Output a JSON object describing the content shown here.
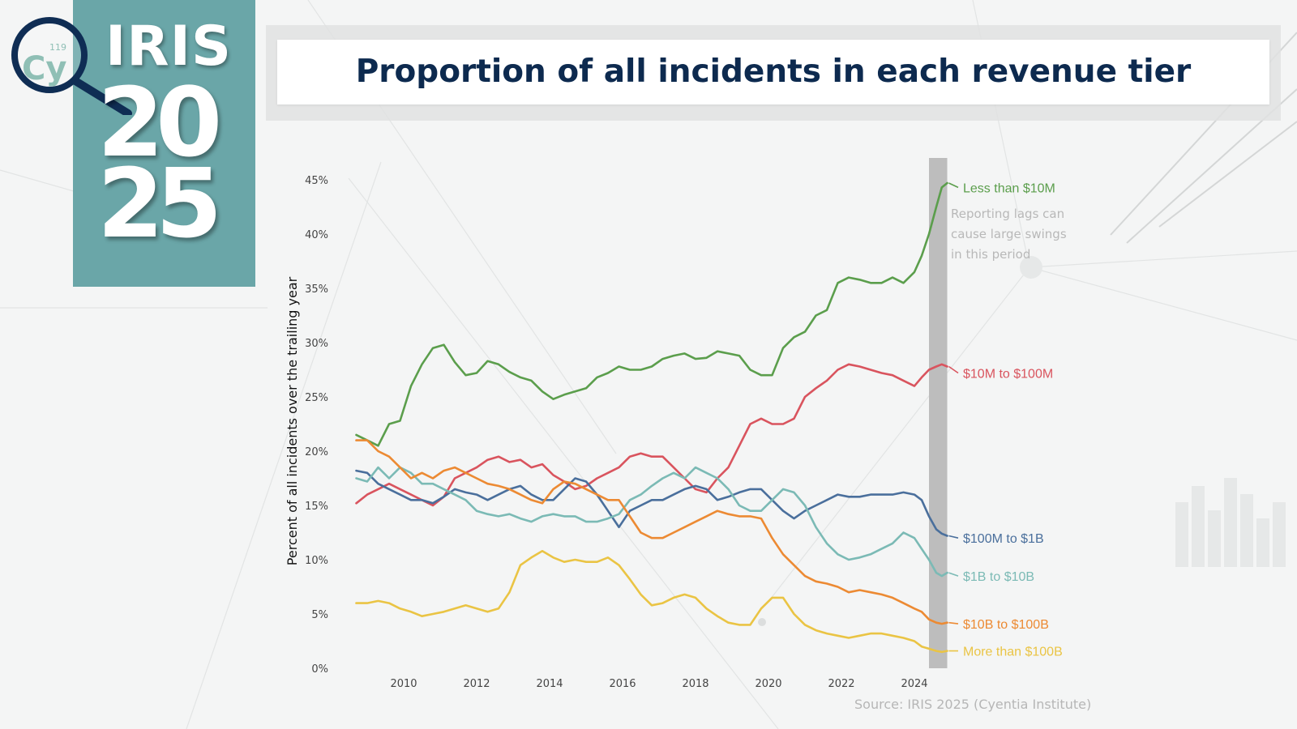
{
  "header": {
    "logo_word": "IRIS",
    "logo_year_top": "20",
    "logo_year_bottom": "25",
    "logo_badge_text": "Cy",
    "logo_badge_number": "119"
  },
  "footer": {
    "source": "Source: IRIS 2025 (Cyentia Institute)"
  },
  "colors": {
    "lt10m": "#5b9e4c",
    "10m_100m": "#d9545e",
    "100m_1b": "#4a6f9c",
    "1b_10b": "#7bbab5",
    "10b_100b": "#ec8a33",
    "gt100b": "#eac444",
    "logo_bg": "#6aa6a8",
    "title": "#0d2a4f"
  },
  "chart_data": {
    "type": "line",
    "title": "Proportion of all incidents in each revenue tier",
    "ylabel": "Percent of all incidents over the trailing year",
    "xlabel": "",
    "xlim": [
      2008.7,
      2024.9
    ],
    "ylim": [
      0,
      45
    ],
    "x_ticks": [
      2010,
      2012,
      2014,
      2016,
      2018,
      2020,
      2022,
      2024
    ],
    "y_ticks": [
      0,
      5,
      10,
      15,
      20,
      25,
      30,
      35,
      40,
      45
    ],
    "y_tick_labels": [
      "0%",
      "5%",
      "10%",
      "15%",
      "20%",
      "25%",
      "30%",
      "35%",
      "40%",
      "45%"
    ],
    "grid": false,
    "legend": "direct labels at right end of lines",
    "highlight_band": {
      "x": [
        2024.4,
        2024.9
      ]
    },
    "annotation": {
      "text": [
        "Reporting lags can",
        "cause large swings",
        "in this period"
      ],
      "x": 2025.0,
      "y": 41.5
    },
    "series": [
      {
        "name": "Less than $10M",
        "color_key": "lt10m",
        "label_y": 44.3,
        "x": [
          2008.7,
          2009.0,
          2009.3,
          2009.6,
          2009.9,
          2010.2,
          2010.5,
          2010.8,
          2011.1,
          2011.4,
          2011.7,
          2012.0,
          2012.3,
          2012.6,
          2012.9,
          2013.2,
          2013.5,
          2013.8,
          2014.1,
          2014.4,
          2014.7,
          2015.0,
          2015.3,
          2015.6,
          2015.9,
          2016.2,
          2016.5,
          2016.8,
          2017.1,
          2017.4,
          2017.7,
          2018.0,
          2018.3,
          2018.6,
          2018.9,
          2019.2,
          2019.5,
          2019.8,
          2020.1,
          2020.4,
          2020.7,
          2021.0,
          2021.3,
          2021.6,
          2021.9,
          2022.2,
          2022.5,
          2022.8,
          2023.1,
          2023.4,
          2023.7,
          2024.0,
          2024.2,
          2024.4,
          2024.6,
          2024.75,
          2024.9
        ],
        "y": [
          21.5,
          21.0,
          20.5,
          22.5,
          22.8,
          26.0,
          28.0,
          29.5,
          29.8,
          28.2,
          27.0,
          27.2,
          28.3,
          28.0,
          27.3,
          26.8,
          26.5,
          25.5,
          24.8,
          25.2,
          25.5,
          25.8,
          26.8,
          27.2,
          27.8,
          27.5,
          27.5,
          27.8,
          28.5,
          28.8,
          29.0,
          28.5,
          28.6,
          29.2,
          29.0,
          28.8,
          27.5,
          27.0,
          27.0,
          29.5,
          30.5,
          31.0,
          32.5,
          33.0,
          35.5,
          36.0,
          35.8,
          35.5,
          35.5,
          36.0,
          35.5,
          36.5,
          38.0,
          40.0,
          42.5,
          44.3,
          44.7
        ]
      },
      {
        "name": "$10M to $100M",
        "color_key": "10m_100m",
        "label_y": 27.2,
        "x": [
          2008.7,
          2009.0,
          2009.3,
          2009.6,
          2009.9,
          2010.2,
          2010.5,
          2010.8,
          2011.1,
          2011.4,
          2011.7,
          2012.0,
          2012.3,
          2012.6,
          2012.9,
          2013.2,
          2013.5,
          2013.8,
          2014.1,
          2014.4,
          2014.7,
          2015.0,
          2015.3,
          2015.6,
          2015.9,
          2016.2,
          2016.5,
          2016.8,
          2017.1,
          2017.4,
          2017.7,
          2018.0,
          2018.3,
          2018.6,
          2018.9,
          2019.2,
          2019.5,
          2019.8,
          2020.1,
          2020.4,
          2020.7,
          2021.0,
          2021.3,
          2021.6,
          2021.9,
          2022.2,
          2022.5,
          2022.8,
          2023.1,
          2023.4,
          2023.7,
          2024.0,
          2024.2,
          2024.4,
          2024.6,
          2024.75,
          2024.9
        ],
        "y": [
          15.2,
          16.0,
          16.5,
          17.0,
          16.5,
          16.0,
          15.5,
          15.0,
          15.8,
          17.5,
          18.0,
          18.5,
          19.2,
          19.5,
          19.0,
          19.2,
          18.5,
          18.8,
          17.8,
          17.2,
          16.5,
          16.8,
          17.5,
          18.0,
          18.5,
          19.5,
          19.8,
          19.5,
          19.5,
          18.5,
          17.5,
          16.5,
          16.2,
          17.5,
          18.5,
          20.5,
          22.5,
          23.0,
          22.5,
          22.5,
          23.0,
          25.0,
          25.8,
          26.5,
          27.5,
          28.0,
          27.8,
          27.5,
          27.2,
          27.0,
          26.5,
          26.0,
          26.8,
          27.5,
          27.8,
          28.0,
          27.8
        ]
      },
      {
        "name": "$100M to $1B",
        "color_key": "100m_1b",
        "label_y": 12.0,
        "x": [
          2008.7,
          2009.0,
          2009.3,
          2009.6,
          2009.9,
          2010.2,
          2010.5,
          2010.8,
          2011.1,
          2011.4,
          2011.7,
          2012.0,
          2012.3,
          2012.6,
          2012.9,
          2013.2,
          2013.5,
          2013.8,
          2014.1,
          2014.4,
          2014.7,
          2015.0,
          2015.3,
          2015.6,
          2015.9,
          2016.2,
          2016.5,
          2016.8,
          2017.1,
          2017.4,
          2017.7,
          2018.0,
          2018.3,
          2018.6,
          2018.9,
          2019.2,
          2019.5,
          2019.8,
          2020.1,
          2020.4,
          2020.7,
          2021.0,
          2021.3,
          2021.6,
          2021.9,
          2022.2,
          2022.5,
          2022.8,
          2023.1,
          2023.4,
          2023.7,
          2024.0,
          2024.2,
          2024.4,
          2024.6,
          2024.75,
          2024.9
        ],
        "y": [
          18.2,
          18.0,
          17.0,
          16.5,
          16.0,
          15.5,
          15.5,
          15.2,
          15.8,
          16.5,
          16.2,
          16.0,
          15.5,
          16.0,
          16.5,
          16.8,
          16.0,
          15.5,
          15.5,
          16.5,
          17.5,
          17.2,
          16.0,
          14.5,
          13.0,
          14.5,
          15.0,
          15.5,
          15.5,
          16.0,
          16.5,
          16.8,
          16.5,
          15.5,
          15.8,
          16.2,
          16.5,
          16.5,
          15.5,
          14.5,
          13.8,
          14.5,
          15.0,
          15.5,
          16.0,
          15.8,
          15.8,
          16.0,
          16.0,
          16.0,
          16.2,
          16.0,
          15.5,
          14.0,
          12.8,
          12.4,
          12.2
        ]
      },
      {
        "name": "$1B to $10B",
        "color_key": "1b_10b",
        "label_y": 8.5,
        "x": [
          2008.7,
          2009.0,
          2009.3,
          2009.6,
          2009.9,
          2010.2,
          2010.5,
          2010.8,
          2011.1,
          2011.4,
          2011.7,
          2012.0,
          2012.3,
          2012.6,
          2012.9,
          2013.2,
          2013.5,
          2013.8,
          2014.1,
          2014.4,
          2014.7,
          2015.0,
          2015.3,
          2015.6,
          2015.9,
          2016.2,
          2016.5,
          2016.8,
          2017.1,
          2017.4,
          2017.7,
          2018.0,
          2018.3,
          2018.6,
          2018.9,
          2019.2,
          2019.5,
          2019.8,
          2020.1,
          2020.4,
          2020.7,
          2021.0,
          2021.3,
          2021.6,
          2021.9,
          2022.2,
          2022.5,
          2022.8,
          2023.1,
          2023.4,
          2023.7,
          2024.0,
          2024.2,
          2024.4,
          2024.6,
          2024.75,
          2024.9
        ],
        "y": [
          17.5,
          17.2,
          18.5,
          17.5,
          18.5,
          18.0,
          17.0,
          17.0,
          16.5,
          16.0,
          15.5,
          14.5,
          14.2,
          14.0,
          14.2,
          13.8,
          13.5,
          14.0,
          14.2,
          14.0,
          14.0,
          13.5,
          13.5,
          13.8,
          14.2,
          15.5,
          16.0,
          16.8,
          17.5,
          18.0,
          17.5,
          18.5,
          18.0,
          17.5,
          16.5,
          15.0,
          14.5,
          14.5,
          15.5,
          16.5,
          16.2,
          15.0,
          13.0,
          11.5,
          10.5,
          10.0,
          10.2,
          10.5,
          11.0,
          11.5,
          12.5,
          12.0,
          11.0,
          10.0,
          8.8,
          8.5,
          8.8
        ]
      },
      {
        "name": "$10B to $100B",
        "color_key": "10b_100b",
        "label_y": 4.1,
        "x": [
          2008.7,
          2009.0,
          2009.3,
          2009.6,
          2009.9,
          2010.2,
          2010.5,
          2010.8,
          2011.1,
          2011.4,
          2011.7,
          2012.0,
          2012.3,
          2012.6,
          2012.9,
          2013.2,
          2013.5,
          2013.8,
          2014.1,
          2014.4,
          2014.7,
          2015.0,
          2015.3,
          2015.6,
          2015.9,
          2016.2,
          2016.5,
          2016.8,
          2017.1,
          2017.4,
          2017.7,
          2018.0,
          2018.3,
          2018.6,
          2018.9,
          2019.2,
          2019.5,
          2019.8,
          2020.1,
          2020.4,
          2020.7,
          2021.0,
          2021.3,
          2021.6,
          2021.9,
          2022.2,
          2022.5,
          2022.8,
          2023.1,
          2023.4,
          2023.7,
          2024.0,
          2024.2,
          2024.4,
          2024.6,
          2024.75,
          2024.9
        ],
        "y": [
          21.0,
          21.0,
          20.0,
          19.5,
          18.5,
          17.5,
          18.0,
          17.5,
          18.2,
          18.5,
          18.0,
          17.5,
          17.0,
          16.8,
          16.5,
          16.0,
          15.5,
          15.2,
          16.5,
          17.2,
          17.0,
          16.5,
          16.0,
          15.5,
          15.5,
          14.0,
          12.5,
          12.0,
          12.0,
          12.5,
          13.0,
          13.5,
          14.0,
          14.5,
          14.2,
          14.0,
          14.0,
          13.8,
          12.0,
          10.5,
          9.5,
          8.5,
          8.0,
          7.8,
          7.5,
          7.0,
          7.2,
          7.0,
          6.8,
          6.5,
          6.0,
          5.5,
          5.2,
          4.5,
          4.2,
          4.1,
          4.2
        ]
      },
      {
        "name": "More than $100B",
        "color_key": "gt100b",
        "label_y": 1.6,
        "x": [
          2008.7,
          2009.0,
          2009.3,
          2009.6,
          2009.9,
          2010.2,
          2010.5,
          2010.8,
          2011.1,
          2011.4,
          2011.7,
          2012.0,
          2012.3,
          2012.6,
          2012.9,
          2013.2,
          2013.5,
          2013.8,
          2014.1,
          2014.4,
          2014.7,
          2015.0,
          2015.3,
          2015.6,
          2015.9,
          2016.2,
          2016.5,
          2016.8,
          2017.1,
          2017.4,
          2017.7,
          2018.0,
          2018.3,
          2018.6,
          2018.9,
          2019.2,
          2019.5,
          2019.8,
          2020.1,
          2020.4,
          2020.7,
          2021.0,
          2021.3,
          2021.6,
          2021.9,
          2022.2,
          2022.5,
          2022.8,
          2023.1,
          2023.4,
          2023.7,
          2024.0,
          2024.2,
          2024.4,
          2024.6,
          2024.75,
          2024.9
        ],
        "y": [
          6.0,
          6.0,
          6.2,
          6.0,
          5.5,
          5.2,
          4.8,
          5.0,
          5.2,
          5.5,
          5.8,
          5.5,
          5.2,
          5.5,
          7.0,
          9.5,
          10.2,
          10.8,
          10.2,
          9.8,
          10.0,
          9.8,
          9.8,
          10.2,
          9.5,
          8.2,
          6.8,
          5.8,
          6.0,
          6.5,
          6.8,
          6.5,
          5.5,
          4.8,
          4.2,
          4.0,
          4.0,
          5.5,
          6.5,
          6.5,
          5.0,
          4.0,
          3.5,
          3.2,
          3.0,
          2.8,
          3.0,
          3.2,
          3.2,
          3.0,
          2.8,
          2.5,
          2.0,
          1.8,
          1.6,
          1.5,
          1.6
        ]
      }
    ]
  }
}
